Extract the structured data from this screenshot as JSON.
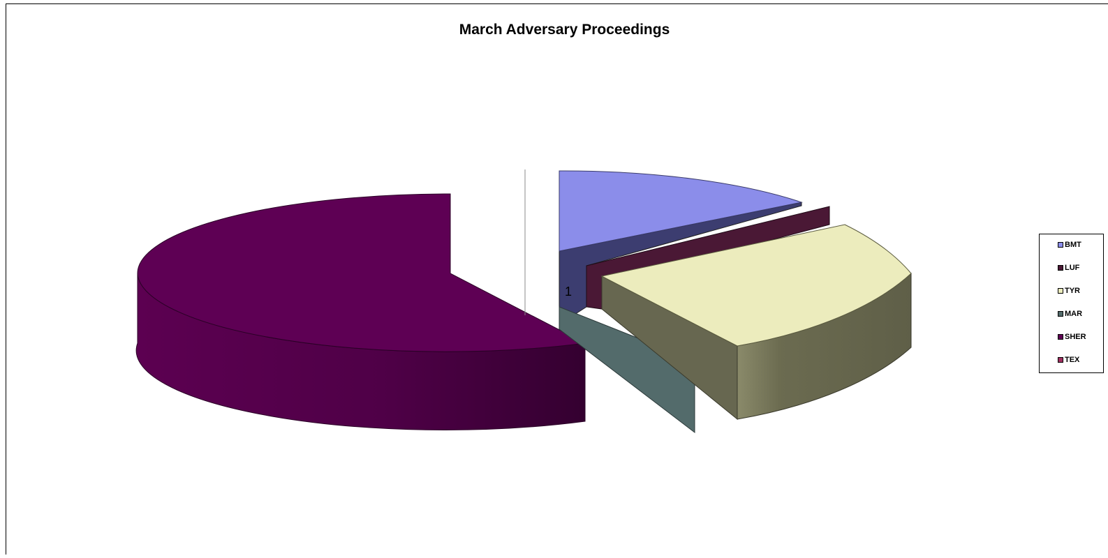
{
  "chart_data": {
    "type": "pie",
    "title": "March Adversary Proceedings",
    "category_label": "1",
    "slices": [
      {
        "name": "BMT",
        "value": 15,
        "color": "#8b8dea"
      },
      {
        "name": "LUF",
        "value": 3,
        "color": "#4a1835"
      },
      {
        "name": "TYR",
        "value": 29,
        "color": "#ececbd"
      },
      {
        "name": "MAR",
        "value": 0,
        "color": "#536b6b"
      },
      {
        "name": "SHER",
        "value": 53,
        "color": "#5e0054"
      },
      {
        "name": "TEX",
        "value": 0,
        "color": "#a03060"
      }
    ],
    "legend_position": "right",
    "style": "3d-exploded"
  }
}
